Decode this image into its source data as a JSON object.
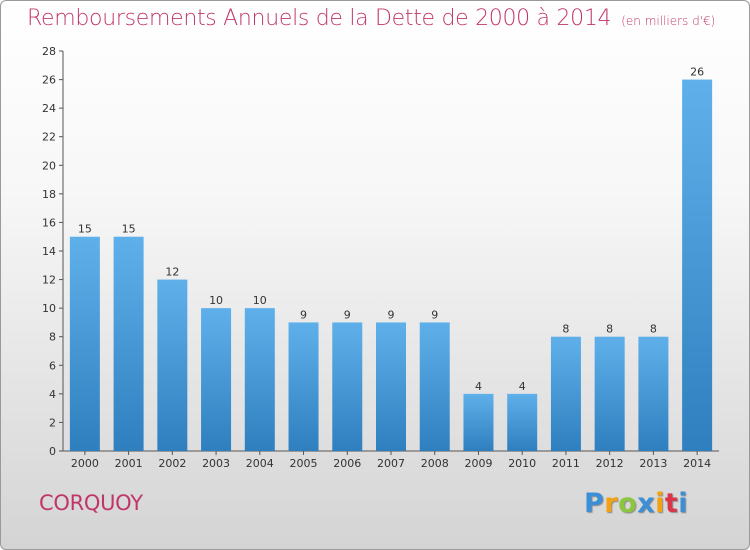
{
  "title": {
    "main": "Remboursements Annuels de la Dette de 2000 à 2014",
    "unit": "(en milliers d'€)"
  },
  "place_name": "CORQUOY",
  "logo": {
    "letters": [
      "P",
      "r",
      "o",
      "x",
      "i",
      "t",
      "i"
    ],
    "colors": [
      "#3a8fd6",
      "#f2a20f",
      "#8cc63f",
      "#3a8fd6",
      "#f2a20f",
      "#d9364a",
      "#3a8fd6"
    ]
  },
  "colors": {
    "title": "#c0366b",
    "bar_light": "#5fb0ea",
    "bar_dark": "#2f7fbf",
    "axis": "#555555",
    "grid": "#dcdcdc"
  },
  "chart_data": {
    "type": "bar",
    "categories": [
      "2000",
      "2001",
      "2002",
      "2003",
      "2004",
      "2005",
      "2006",
      "2007",
      "2008",
      "2009",
      "2010",
      "2011",
      "2012",
      "2013",
      "2014"
    ],
    "values": [
      15,
      15,
      12,
      10,
      10,
      9,
      9,
      9,
      9,
      4,
      4,
      8,
      8,
      8,
      26
    ],
    "data_labels": [
      "15",
      "15",
      "12",
      "10",
      "10",
      "9",
      "9",
      "9",
      "9",
      "4",
      "4",
      "8",
      "8",
      "8",
      "26"
    ],
    "y_ticks": [
      "0",
      "2",
      "4",
      "6",
      "8",
      "10",
      "12",
      "14",
      "16",
      "18",
      "20",
      "22",
      "24",
      "26",
      "28"
    ],
    "ylim": [
      0,
      28
    ],
    "grid": false,
    "legend": "none"
  }
}
